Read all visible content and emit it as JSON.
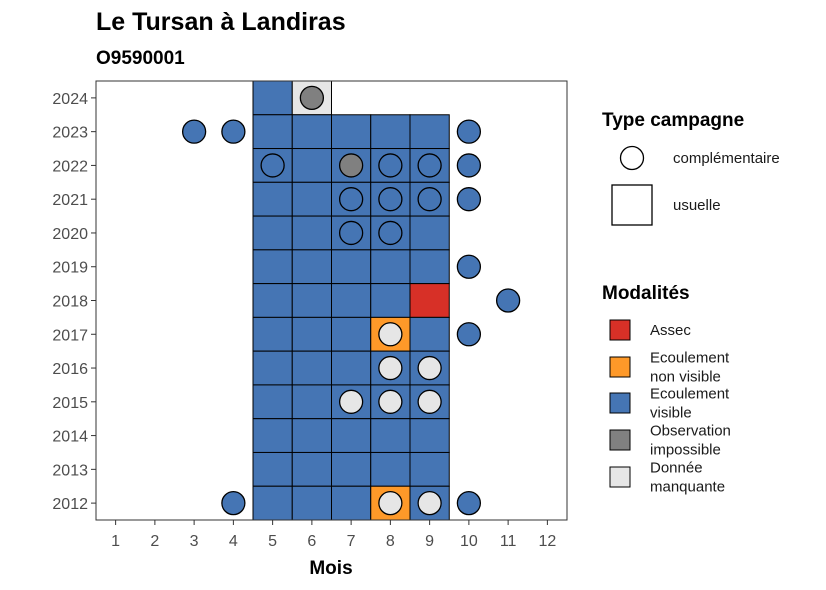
{
  "chart_data": {
    "type": "heatmap",
    "title": "Le Tursan à Landiras",
    "subtitle": "O9590001",
    "xlabel": "Mois",
    "ylabel": "",
    "x_ticks": [
      "1",
      "2",
      "3",
      "4",
      "5",
      "6",
      "7",
      "8",
      "9",
      "10",
      "11",
      "12"
    ],
    "y_ticks": [
      "2012",
      "2013",
      "2014",
      "2015",
      "2016",
      "2017",
      "2018",
      "2019",
      "2020",
      "2021",
      "2022",
      "2023",
      "2024"
    ],
    "xlim": [
      0.5,
      12.5
    ],
    "ylim": [
      2011.5,
      2024.5
    ],
    "grid": false,
    "colors": {
      "Assec": "#d73027",
      "Ecoulement non visible": "#fe9929",
      "Ecoulement visible": "#4575b4",
      "Observation impossible": "#808080",
      "Donnée manquante": "#e6e6e6"
    },
    "legend_type": {
      "title": "Type campagne",
      "position": "right",
      "entries": [
        {
          "label": "complémentaire",
          "shape": "circle"
        },
        {
          "label": "usuelle",
          "shape": "square"
        }
      ]
    },
    "legend_modalites": {
      "title": "Modalités",
      "position": "right",
      "entries": [
        {
          "label_lines": [
            "Assec"
          ],
          "key": "Assec"
        },
        {
          "label_lines": [
            "Ecoulement",
            "non visible"
          ],
          "key": "Ecoulement non visible"
        },
        {
          "label_lines": [
            "Ecoulement",
            "visible"
          ],
          "key": "Ecoulement visible"
        },
        {
          "label_lines": [
            "Observation",
            "impossible"
          ],
          "key": "Observation impossible"
        },
        {
          "label_lines": [
            "Donnée",
            "manquante"
          ],
          "key": "Donnée manquante"
        }
      ]
    },
    "usuelle": [
      {
        "year": 2024,
        "month": 5,
        "value": "Ecoulement visible"
      },
      {
        "year": 2024,
        "month": 6,
        "value": "Donnée manquante"
      },
      {
        "year": 2023,
        "month": 5,
        "value": "Ecoulement visible"
      },
      {
        "year": 2023,
        "month": 6,
        "value": "Ecoulement visible"
      },
      {
        "year": 2023,
        "month": 7,
        "value": "Ecoulement visible"
      },
      {
        "year": 2023,
        "month": 8,
        "value": "Ecoulement visible"
      },
      {
        "year": 2023,
        "month": 9,
        "value": "Ecoulement visible"
      },
      {
        "year": 2022,
        "month": 5,
        "value": "Ecoulement visible"
      },
      {
        "year": 2022,
        "month": 6,
        "value": "Ecoulement visible"
      },
      {
        "year": 2022,
        "month": 7,
        "value": "Ecoulement visible"
      },
      {
        "year": 2022,
        "month": 8,
        "value": "Ecoulement visible"
      },
      {
        "year": 2022,
        "month": 9,
        "value": "Ecoulement visible"
      },
      {
        "year": 2021,
        "month": 5,
        "value": "Ecoulement visible"
      },
      {
        "year": 2021,
        "month": 6,
        "value": "Ecoulement visible"
      },
      {
        "year": 2021,
        "month": 7,
        "value": "Ecoulement visible"
      },
      {
        "year": 2021,
        "month": 8,
        "value": "Ecoulement visible"
      },
      {
        "year": 2021,
        "month": 9,
        "value": "Ecoulement visible"
      },
      {
        "year": 2020,
        "month": 5,
        "value": "Ecoulement visible"
      },
      {
        "year": 2020,
        "month": 6,
        "value": "Ecoulement visible"
      },
      {
        "year": 2020,
        "month": 7,
        "value": "Ecoulement visible"
      },
      {
        "year": 2020,
        "month": 8,
        "value": "Ecoulement visible"
      },
      {
        "year": 2020,
        "month": 9,
        "value": "Ecoulement visible"
      },
      {
        "year": 2019,
        "month": 5,
        "value": "Ecoulement visible"
      },
      {
        "year": 2019,
        "month": 6,
        "value": "Ecoulement visible"
      },
      {
        "year": 2019,
        "month": 7,
        "value": "Ecoulement visible"
      },
      {
        "year": 2019,
        "month": 8,
        "value": "Ecoulement visible"
      },
      {
        "year": 2019,
        "month": 9,
        "value": "Ecoulement visible"
      },
      {
        "year": 2018,
        "month": 5,
        "value": "Ecoulement visible"
      },
      {
        "year": 2018,
        "month": 6,
        "value": "Ecoulement visible"
      },
      {
        "year": 2018,
        "month": 7,
        "value": "Ecoulement visible"
      },
      {
        "year": 2018,
        "month": 8,
        "value": "Ecoulement visible"
      },
      {
        "year": 2018,
        "month": 9,
        "value": "Assec"
      },
      {
        "year": 2017,
        "month": 5,
        "value": "Ecoulement visible"
      },
      {
        "year": 2017,
        "month": 6,
        "value": "Ecoulement visible"
      },
      {
        "year": 2017,
        "month": 7,
        "value": "Ecoulement visible"
      },
      {
        "year": 2017,
        "month": 8,
        "value": "Ecoulement non visible"
      },
      {
        "year": 2017,
        "month": 9,
        "value": "Ecoulement visible"
      },
      {
        "year": 2016,
        "month": 5,
        "value": "Ecoulement visible"
      },
      {
        "year": 2016,
        "month": 6,
        "value": "Ecoulement visible"
      },
      {
        "year": 2016,
        "month": 7,
        "value": "Ecoulement visible"
      },
      {
        "year": 2016,
        "month": 8,
        "value": "Ecoulement visible"
      },
      {
        "year": 2016,
        "month": 9,
        "value": "Ecoulement visible"
      },
      {
        "year": 2015,
        "month": 5,
        "value": "Ecoulement visible"
      },
      {
        "year": 2015,
        "month": 6,
        "value": "Ecoulement visible"
      },
      {
        "year": 2015,
        "month": 7,
        "value": "Ecoulement visible"
      },
      {
        "year": 2015,
        "month": 8,
        "value": "Ecoulement visible"
      },
      {
        "year": 2015,
        "month": 9,
        "value": "Ecoulement visible"
      },
      {
        "year": 2014,
        "month": 5,
        "value": "Ecoulement visible"
      },
      {
        "year": 2014,
        "month": 6,
        "value": "Ecoulement visible"
      },
      {
        "year": 2014,
        "month": 7,
        "value": "Ecoulement visible"
      },
      {
        "year": 2014,
        "month": 8,
        "value": "Ecoulement visible"
      },
      {
        "year": 2014,
        "month": 9,
        "value": "Ecoulement visible"
      },
      {
        "year": 2013,
        "month": 5,
        "value": "Ecoulement visible"
      },
      {
        "year": 2013,
        "month": 6,
        "value": "Ecoulement visible"
      },
      {
        "year": 2013,
        "month": 7,
        "value": "Ecoulement visible"
      },
      {
        "year": 2013,
        "month": 8,
        "value": "Ecoulement visible"
      },
      {
        "year": 2013,
        "month": 9,
        "value": "Ecoulement visible"
      },
      {
        "year": 2012,
        "month": 5,
        "value": "Ecoulement visible"
      },
      {
        "year": 2012,
        "month": 6,
        "value": "Ecoulement visible"
      },
      {
        "year": 2012,
        "month": 7,
        "value": "Ecoulement visible"
      },
      {
        "year": 2012,
        "month": 8,
        "value": "Ecoulement non visible"
      },
      {
        "year": 2012,
        "month": 9,
        "value": "Ecoulement visible"
      }
    ],
    "complementaire": [
      {
        "year": 2024,
        "month": 6,
        "value": "Observation impossible"
      },
      {
        "year": 2023,
        "month": 3,
        "value": "Ecoulement visible"
      },
      {
        "year": 2023,
        "month": 4,
        "value": "Ecoulement visible"
      },
      {
        "year": 2023,
        "month": 10,
        "value": "Ecoulement visible"
      },
      {
        "year": 2022,
        "month": 5,
        "value": "Ecoulement visible"
      },
      {
        "year": 2022,
        "month": 7,
        "value": "Observation impossible"
      },
      {
        "year": 2022,
        "month": 8,
        "value": "Ecoulement visible"
      },
      {
        "year": 2022,
        "month": 9,
        "value": "Ecoulement visible"
      },
      {
        "year": 2022,
        "month": 10,
        "value": "Ecoulement visible"
      },
      {
        "year": 2021,
        "month": 7,
        "value": "Ecoulement visible"
      },
      {
        "year": 2021,
        "month": 8,
        "value": "Ecoulement visible"
      },
      {
        "year": 2021,
        "month": 9,
        "value": "Ecoulement visible"
      },
      {
        "year": 2021,
        "month": 10,
        "value": "Ecoulement visible"
      },
      {
        "year": 2020,
        "month": 7,
        "value": "Ecoulement visible"
      },
      {
        "year": 2020,
        "month": 8,
        "value": "Ecoulement visible"
      },
      {
        "year": 2019,
        "month": 10,
        "value": "Ecoulement visible"
      },
      {
        "year": 2018,
        "month": 11,
        "value": "Ecoulement visible"
      },
      {
        "year": 2017,
        "month": 8,
        "value": "Donnée manquante"
      },
      {
        "year": 2017,
        "month": 10,
        "value": "Ecoulement visible"
      },
      {
        "year": 2016,
        "month": 8,
        "value": "Donnée manquante"
      },
      {
        "year": 2016,
        "month": 9,
        "value": "Donnée manquante"
      },
      {
        "year": 2015,
        "month": 7,
        "value": "Donnée manquante"
      },
      {
        "year": 2015,
        "month": 8,
        "value": "Donnée manquante"
      },
      {
        "year": 2015,
        "month": 9,
        "value": "Donnée manquante"
      },
      {
        "year": 2012,
        "month": 4,
        "value": "Ecoulement visible"
      },
      {
        "year": 2012,
        "month": 8,
        "value": "Donnée manquante"
      },
      {
        "year": 2012,
        "month": 9,
        "value": "Donnée manquante"
      },
      {
        "year": 2012,
        "month": 10,
        "value": "Ecoulement visible"
      }
    ]
  }
}
